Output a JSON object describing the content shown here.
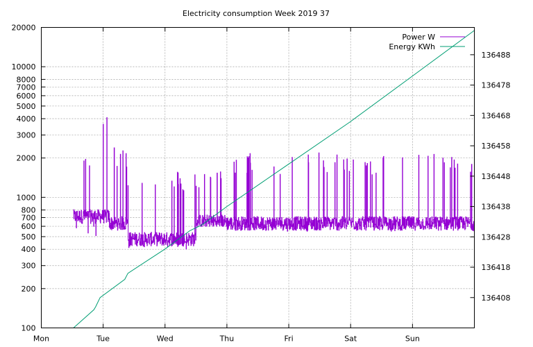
{
  "chart_data": {
    "type": "line",
    "title": "Electricity consumption Week 2019 37",
    "x_categories": [
      "Mon",
      "Tue",
      "Wed",
      "Thu",
      "Fri",
      "Sat",
      "Sun"
    ],
    "x_range_days": [
      0,
      7
    ],
    "y_left": {
      "scale": "log",
      "range": [
        100,
        20000
      ],
      "ticks": [
        100,
        200,
        300,
        400,
        500,
        600,
        700,
        800,
        1000,
        2000,
        3000,
        4000,
        5000,
        6000,
        7000,
        8000,
        10000,
        20000
      ],
      "tick_labels": [
        "100",
        "200",
        "300",
        "400",
        "500",
        "600",
        "700",
        "800",
        "1000",
        "2000",
        "3000",
        "4000",
        "5000",
        "6000",
        "7000",
        "8000",
        "10000",
        "20000"
      ]
    },
    "y_right": {
      "scale": "linear",
      "range": [
        136398,
        136497
      ],
      "ticks": [
        136408,
        136418,
        136428,
        136438,
        136448,
        136458,
        136468,
        136478,
        136488
      ],
      "tick_labels": [
        "136408",
        "136418",
        "136428",
        "136438",
        "136448",
        "136458",
        "136468",
        "136478",
        "136488"
      ]
    },
    "grid": true,
    "legend_position": "top-right",
    "series": [
      {
        "name": "Power W",
        "axis": "left",
        "color": "#9400d3",
        "segments": [
          {
            "x0": 0.52,
            "x1": 0.9,
            "base": 700,
            "low": 480,
            "high": 2200
          },
          {
            "x0": 0.9,
            "x1": 1.1,
            "base": 700,
            "low": 580,
            "high": 4700
          },
          {
            "x0": 1.1,
            "x1": 1.4,
            "base": 620,
            "low": 560,
            "high": 2400
          },
          {
            "x0": 1.4,
            "x1": 2.1,
            "base": 470,
            "low": 410,
            "high": 1600
          },
          {
            "x0": 2.1,
            "x1": 2.5,
            "base": 470,
            "low": 400,
            "high": 1600
          },
          {
            "x0": 2.5,
            "x1": 3.0,
            "base": 640,
            "low": 600,
            "high": 1600
          },
          {
            "x0": 3.0,
            "x1": 7.0,
            "base": 620,
            "low": 550,
            "high": 2200
          }
        ]
      },
      {
        "name": "Energy KWh",
        "axis": "right",
        "color": "#009e73",
        "points": [
          [
            0.52,
            136398
          ],
          [
            0.85,
            136404
          ],
          [
            0.88,
            136405
          ],
          [
            0.95,
            136408
          ],
          [
            1.35,
            136414
          ],
          [
            1.4,
            136416
          ],
          [
            2.0,
            136424
          ],
          [
            2.4,
            136430
          ],
          [
            2.6,
            136432
          ],
          [
            3.0,
            136438
          ],
          [
            4.0,
            136452
          ],
          [
            5.0,
            136466
          ],
          [
            6.0,
            136481
          ],
          [
            7.0,
            136496
          ]
        ]
      }
    ]
  }
}
